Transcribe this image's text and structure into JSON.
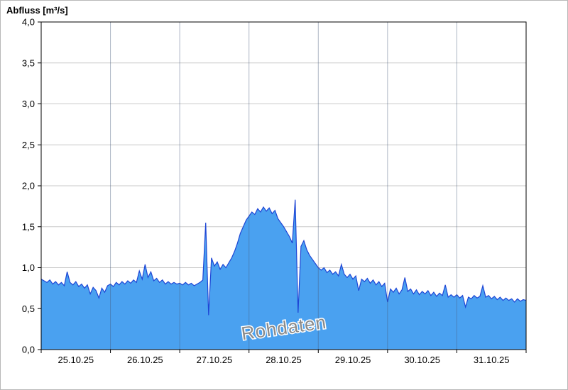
{
  "chart_data": {
    "type": "area",
    "title": "Abfluss [m³/s]",
    "watermark": {
      "text": "Rohdaten",
      "color": "#8a8a8a",
      "halo": "#ffffff",
      "rotation_deg": -8
    },
    "x_tick_labels": [
      "25.10.25",
      "26.10.25",
      "27.10.25",
      "28.10.25",
      "29.10.25",
      "30.10.25",
      "31.10.25"
    ],
    "y_tick_labels": [
      "0,0",
      "0,5",
      "1,0",
      "1,5",
      "2,0",
      "2,5",
      "3,0",
      "3,5",
      "4,0"
    ],
    "y_tick_values": [
      0,
      0.5,
      1.0,
      1.5,
      2.0,
      2.5,
      3.0,
      3.5,
      4.0
    ],
    "ylim": [
      0,
      4
    ],
    "days_shown": 7,
    "sampling": "hourly values from 25.10.25 00:00 to 01.11.25 00:00",
    "values_hourly": [
      0.86,
      0.84,
      0.82,
      0.85,
      0.8,
      0.83,
      0.79,
      0.82,
      0.78,
      0.95,
      0.82,
      0.79,
      0.83,
      0.77,
      0.8,
      0.75,
      0.79,
      0.68,
      0.76,
      0.72,
      0.63,
      0.75,
      0.7,
      0.78,
      0.8,
      0.77,
      0.82,
      0.79,
      0.83,
      0.8,
      0.84,
      0.81,
      0.85,
      0.82,
      0.96,
      0.86,
      1.04,
      0.88,
      0.95,
      0.84,
      0.87,
      0.82,
      0.85,
      0.8,
      0.83,
      0.8,
      0.82,
      0.8,
      0.81,
      0.79,
      0.82,
      0.79,
      0.81,
      0.78,
      0.8,
      0.82,
      0.85,
      1.55,
      0.42,
      1.12,
      1.02,
      1.07,
      0.98,
      1.04,
      1.0,
      1.06,
      1.12,
      1.2,
      1.3,
      1.42,
      1.5,
      1.58,
      1.63,
      1.68,
      1.65,
      1.72,
      1.68,
      1.74,
      1.69,
      1.73,
      1.66,
      1.7,
      1.6,
      1.55,
      1.5,
      1.44,
      1.38,
      1.3,
      1.83,
      0.45,
      1.26,
      1.33,
      1.22,
      1.15,
      1.1,
      1.05,
      1.0,
      0.97,
      1.0,
      0.94,
      0.97,
      0.92,
      0.95,
      0.9,
      1.04,
      0.92,
      0.88,
      0.92,
      0.86,
      0.9,
      0.72,
      0.86,
      0.83,
      0.87,
      0.81,
      0.85,
      0.79,
      0.83,
      0.77,
      0.81,
      0.58,
      0.74,
      0.7,
      0.75,
      0.68,
      0.73,
      0.88,
      0.71,
      0.74,
      0.68,
      0.73,
      0.67,
      0.71,
      0.68,
      0.72,
      0.66,
      0.7,
      0.65,
      0.69,
      0.66,
      0.79,
      0.64,
      0.67,
      0.64,
      0.67,
      0.63,
      0.66,
      0.52,
      0.64,
      0.62,
      0.66,
      0.63,
      0.65,
      0.78,
      0.64,
      0.66,
      0.62,
      0.65,
      0.61,
      0.64,
      0.6,
      0.63,
      0.6,
      0.62,
      0.58,
      0.62,
      0.59,
      0.61,
      0.6
    ],
    "colors": {
      "fill": "#4aa1f0",
      "line": "#1e46d5",
      "h_grid": "#c8c8c8",
      "v_grid": "rgba(70,90,125,0.45)",
      "axis": "#000000",
      "tick_label": "#000000"
    },
    "legend_position": "none",
    "grid": "on"
  }
}
